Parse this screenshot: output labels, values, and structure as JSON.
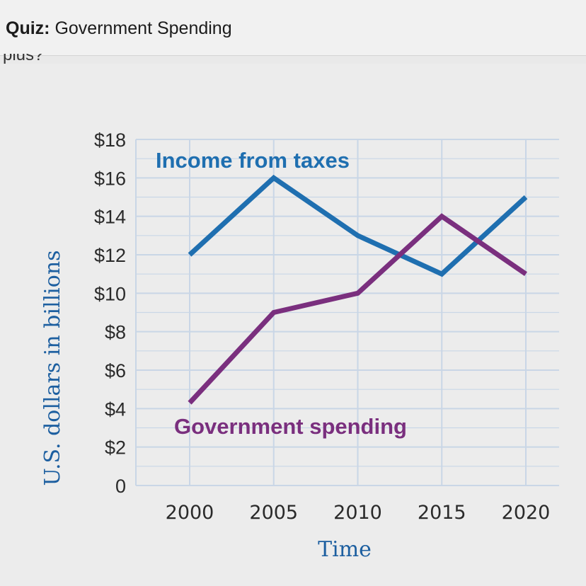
{
  "header": {
    "quiz_label": "Quiz:",
    "quiz_title": "Government Spending",
    "cutoff_text": "plus?"
  },
  "colors": {
    "income": "#1f6fb0",
    "spending": "#7a2f7e",
    "grid": "#c9d6e6",
    "axis_label": "#1d5fa0"
  },
  "chart_data": {
    "type": "line",
    "x": [
      2000,
      2005,
      2010,
      2015,
      2020
    ],
    "xticks": [
      "2000",
      "2005",
      "2010",
      "2015",
      "2020"
    ],
    "yticks": [
      {
        "v": 18,
        "label": "$18"
      },
      {
        "v": 16,
        "label": "$16"
      },
      {
        "v": 14,
        "label": "$14"
      },
      {
        "v": 12,
        "label": "$12"
      },
      {
        "v": 10,
        "label": "$10"
      },
      {
        "v": 8,
        "label": "$8"
      },
      {
        "v": 6,
        "label": "$6"
      },
      {
        "v": 4,
        "label": "$4"
      },
      {
        "v": 2,
        "label": "$2"
      },
      {
        "v": 0,
        "label": "0"
      }
    ],
    "ylim": [
      0,
      18
    ],
    "xlabel": "Time",
    "ylabel": "U.S. dollars in billions",
    "series": [
      {
        "name": "Income from taxes",
        "values": [
          12,
          16,
          13,
          11,
          15
        ]
      },
      {
        "name": "Government spending",
        "values": [
          4.3,
          9,
          10,
          14,
          11
        ]
      }
    ],
    "grid": true
  }
}
